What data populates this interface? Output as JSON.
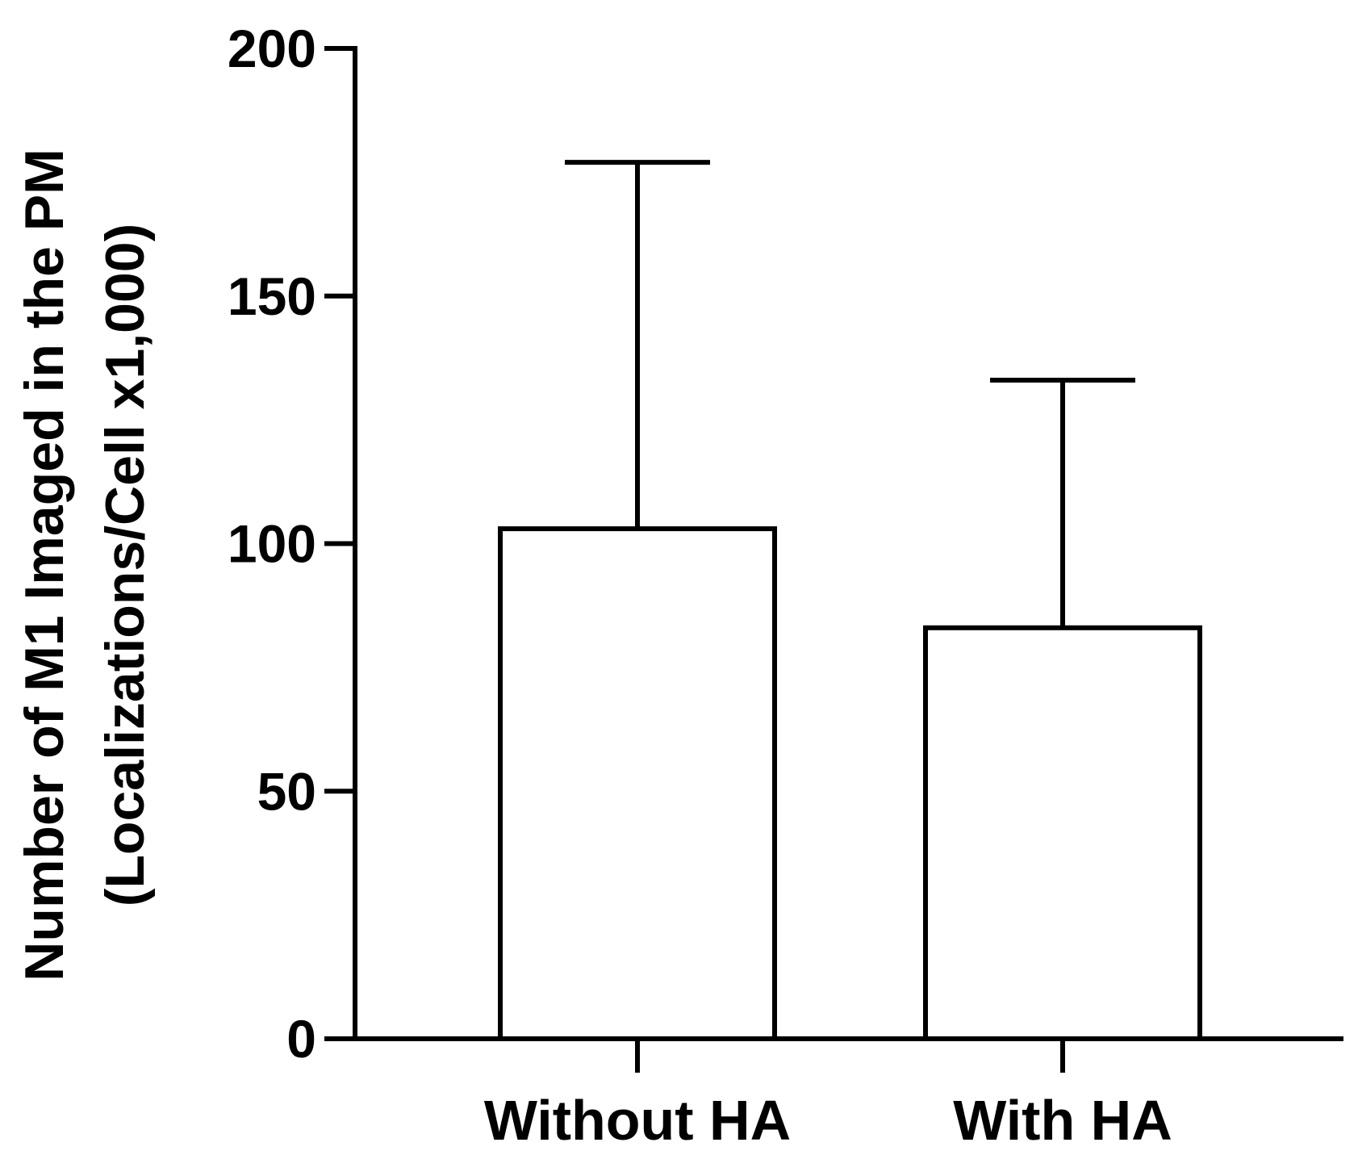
{
  "chart_data": {
    "type": "bar",
    "categories": [
      "Without HA",
      "With HA"
    ],
    "values": [
      103,
      83
    ],
    "error_upper": [
      177,
      133
    ],
    "ylabel_line1": "Number of M1 Imaged in the PM",
    "ylabel_line2": "(Localizations/Cell x1,000)",
    "xlabel": "",
    "ylim": [
      0,
      200
    ],
    "yticks": [
      0,
      50,
      100,
      150,
      200
    ],
    "grid": false,
    "colors": {
      "bar_fill": "#ffffff",
      "stroke": "#000000"
    }
  }
}
